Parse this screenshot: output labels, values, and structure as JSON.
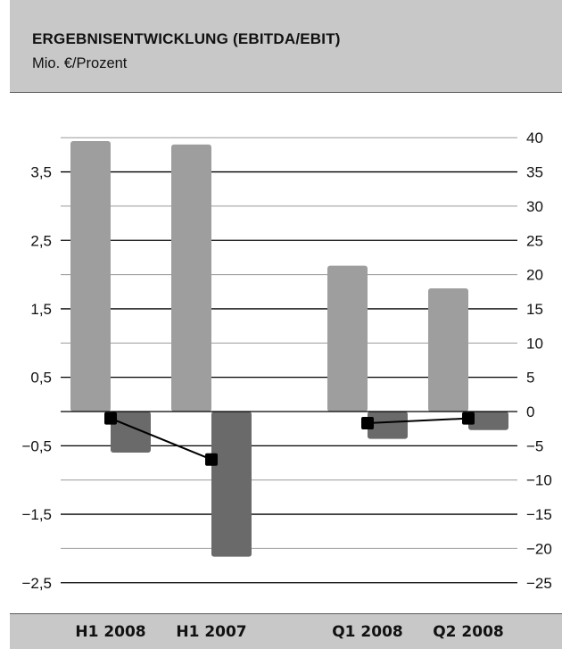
{
  "header": {
    "title": "ERGEBNISENTWICKLUNG (EBITDA/EBIT)",
    "subtitle": "Mio. €/Prozent"
  },
  "chart_data": {
    "type": "bar",
    "categories": [
      "H1 2008",
      "H1 2007",
      "Q1 2008",
      "Q2 2008"
    ],
    "series": [
      {
        "kind": "bar",
        "axis": "left",
        "values": [
          3.95,
          3.9,
          2.13,
          1.8
        ],
        "color": "#9e9e9e"
      },
      {
        "kind": "bar",
        "axis": "left",
        "values": [
          -0.6,
          -2.12,
          -0.4,
          -0.27
        ],
        "color": "#6a6a6a"
      },
      {
        "kind": "line",
        "axis": "right",
        "values": [
          -1,
          -7,
          -1.7,
          -1
        ],
        "color": "#000000"
      }
    ],
    "left_axis": {
      "ylim": [
        -3,
        4
      ],
      "ticks": [
        3.5,
        2.5,
        1.5,
        0.5,
        -0.5,
        -1.5,
        -2.5
      ],
      "tick_labels": [
        "3,5",
        "2,5",
        "1,5",
        "0,5",
        "−0,5",
        "−1,5",
        "−2,5"
      ]
    },
    "right_axis": {
      "ylim": [
        -30,
        40
      ],
      "ticks": [
        40,
        35,
        30,
        25,
        20,
        15,
        10,
        5,
        0,
        -5,
        -10,
        -15,
        -20,
        -25
      ],
      "tick_labels": [
        "40",
        "35",
        "30",
        "25",
        "20",
        "15",
        "10",
        "5",
        "0",
        "−5",
        "−10",
        "−15",
        "−20",
        "−25"
      ]
    },
    "grid": true
  }
}
